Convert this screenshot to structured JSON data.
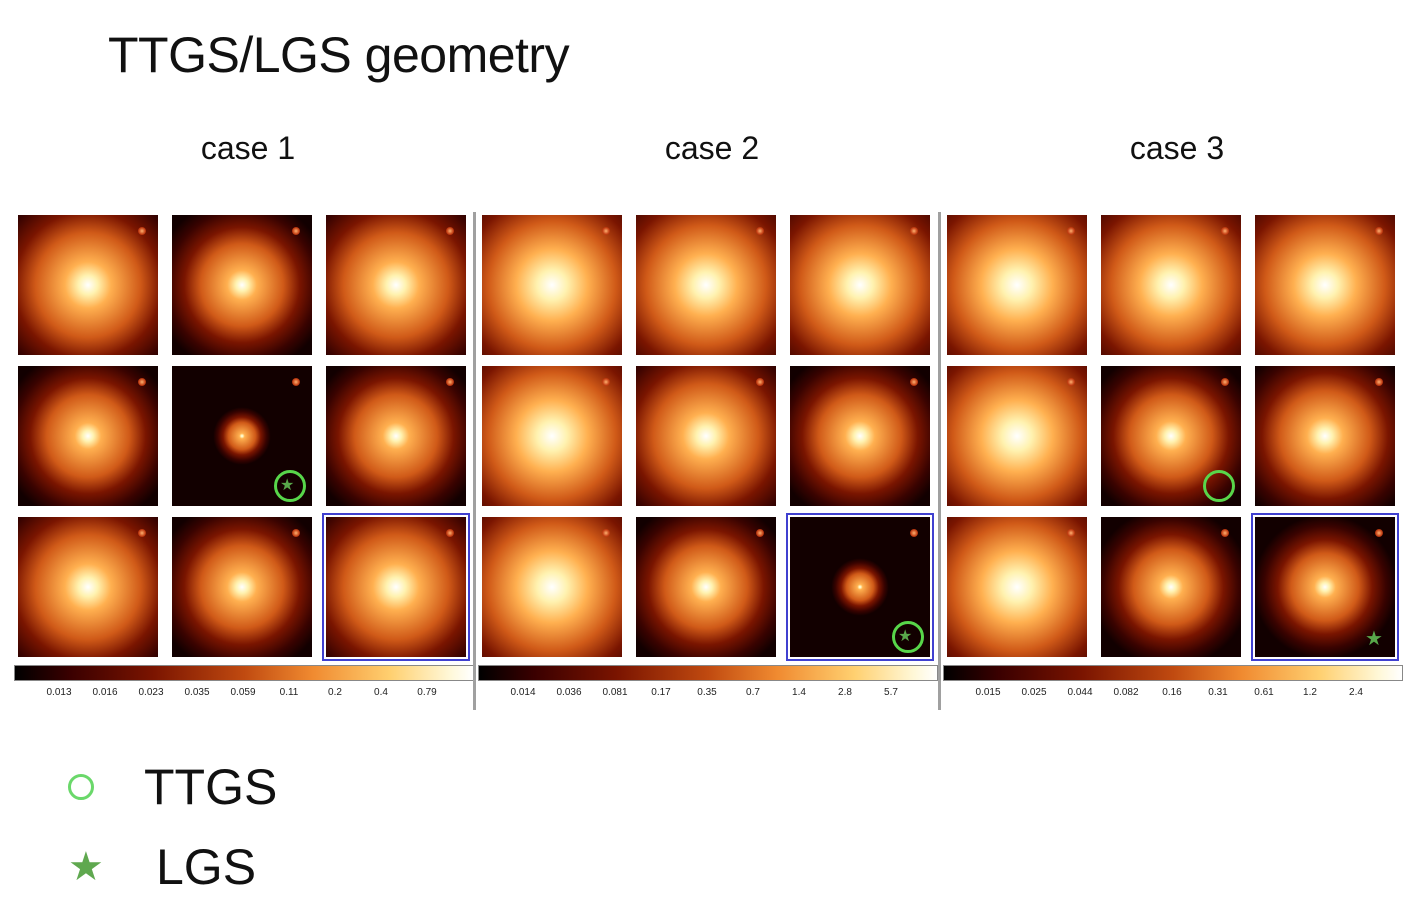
{
  "title": "TTGS/LGS geometry",
  "cases": [
    {
      "label": "case 1",
      "ticks": [
        "0.013",
        "0.016",
        "0.023",
        "0.035",
        "0.059",
        "0.11",
        "0.2",
        "0.4",
        "0.79"
      ],
      "tiles": [
        {
          "core": 0.55,
          "spread": 70
        },
        {
          "core": 0.45,
          "spread": 55
        },
        {
          "core": 0.55,
          "spread": 70
        },
        {
          "core": 0.4,
          "spread": 55
        },
        {
          "core": 0.25,
          "spread": 18,
          "marker": "circle-star"
        },
        {
          "core": 0.4,
          "spread": 55
        },
        {
          "core": 0.55,
          "spread": 70
        },
        {
          "core": 0.45,
          "spread": 55
        },
        {
          "core": 0.55,
          "spread": 70,
          "highlight": true
        }
      ]
    },
    {
      "label": "case 2",
      "ticks": [
        "0.014",
        "0.036",
        "0.081",
        "0.17",
        "0.35",
        "0.7",
        "1.4",
        "2.8",
        "5.7"
      ],
      "tiles": [
        {
          "core": 0.7,
          "spread": 85
        },
        {
          "core": 0.65,
          "spread": 80
        },
        {
          "core": 0.65,
          "spread": 80
        },
        {
          "core": 0.7,
          "spread": 85
        },
        {
          "core": 0.55,
          "spread": 70
        },
        {
          "core": 0.45,
          "spread": 55
        },
        {
          "core": 0.7,
          "spread": 85
        },
        {
          "core": 0.45,
          "spread": 55
        },
        {
          "core": 0.25,
          "spread": 18,
          "marker": "circle-star",
          "highlight": true
        }
      ]
    },
    {
      "label": "case 3",
      "ticks": [
        "0.015",
        "0.025",
        "0.044",
        "0.082",
        "0.16",
        "0.31",
        "0.61",
        "1.2",
        "2.4"
      ],
      "tiles": [
        {
          "core": 0.7,
          "spread": 85
        },
        {
          "core": 0.65,
          "spread": 80
        },
        {
          "core": 0.65,
          "spread": 80
        },
        {
          "core": 0.7,
          "spread": 85
        },
        {
          "core": 0.45,
          "spread": 55,
          "marker": "circle"
        },
        {
          "core": 0.5,
          "spread": 60
        },
        {
          "core": 0.7,
          "spread": 85
        },
        {
          "core": 0.4,
          "spread": 50
        },
        {
          "core": 0.4,
          "spread": 45,
          "marker": "star",
          "highlight": true
        }
      ]
    }
  ],
  "legend": {
    "ttgs_label": "TTGS",
    "lgs_label": "LGS",
    "ttgs_color": "#6ad86a",
    "lgs_color": "#5fa84f",
    "highlight_color": "#4040d0"
  }
}
